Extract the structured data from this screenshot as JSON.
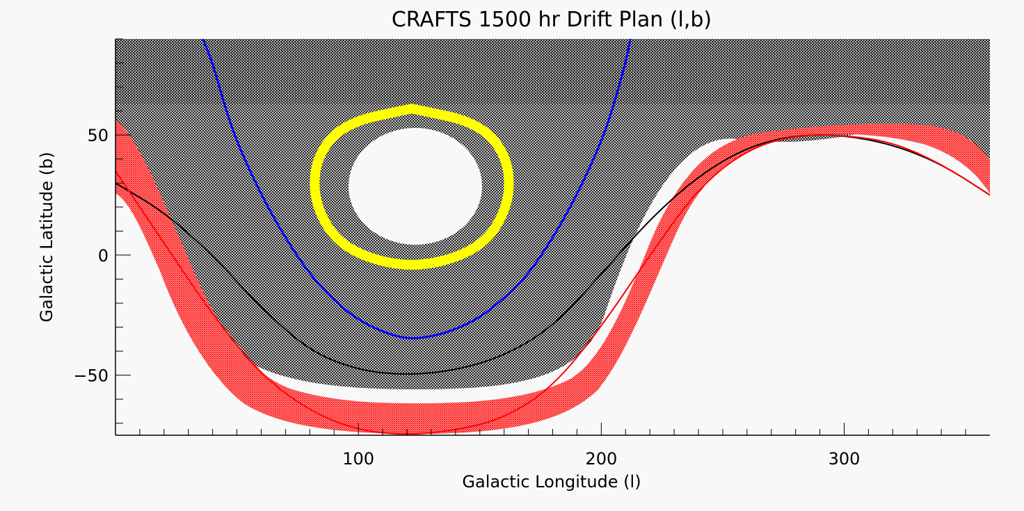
{
  "chart_data": {
    "type": "line",
    "title": "CRAFTS 1500 hr Drift Plan (l,b)",
    "xlabel": "Galactic Longitude (l)",
    "ylabel": "Galactic Latitude (b)",
    "xlim": [
      0,
      360
    ],
    "ylim": [
      -75,
      90
    ],
    "x_ticks_major": [
      100,
      200,
      300
    ],
    "x_tick_labels": [
      "100",
      "200",
      "300"
    ],
    "y_ticks_major": [
      -50,
      0,
      50
    ],
    "y_tick_labels": [
      "−50",
      "0",
      "50"
    ],
    "grid": false,
    "legend": "none",
    "series": [
      {
        "color": "#000000",
        "x": [
          0,
          20,
          40,
          60,
          80,
          100,
          120,
          140,
          160,
          180,
          200,
          220,
          240,
          260,
          280,
          300,
          320,
          340,
          360
        ],
        "y": [
          30,
          18,
          0,
          -22,
          -40,
          -48,
          -50,
          -48,
          -42,
          -30,
          -8,
          15,
          33,
          45,
          50,
          50,
          46,
          38,
          25
        ]
      },
      {
        "color": "#ff0000",
        "x": [
          0,
          20,
          40,
          60,
          80,
          100,
          120,
          140,
          160,
          180,
          200,
          220,
          240,
          260,
          280,
          300,
          320,
          340,
          360
        ],
        "y": [
          35,
          5,
          -25,
          -50,
          -65,
          -73,
          -75,
          -73,
          -68,
          -55,
          -30,
          0,
          28,
          44,
          50,
          50,
          47,
          38,
          25
        ]
      },
      {
        "color": "#0000ff",
        "x": [
          36,
          40,
          45,
          50,
          60,
          70,
          80,
          90,
          100,
          110,
          120,
          130,
          140,
          150,
          160,
          170,
          180,
          190,
          200,
          205,
          210,
          212
        ],
        "y": [
          90,
          80,
          62,
          47,
          25,
          7,
          -8,
          -19,
          -27,
          -32,
          -35,
          -34,
          -31,
          -26,
          -18,
          -8,
          7,
          25,
          47,
          62,
          80,
          90
        ]
      },
      {
        "color": "#ffff00",
        "x": [
          122,
          150,
          162,
          162,
          150,
          122,
          94,
          82,
          82,
          94,
          122
        ],
        "y": [
          61,
          55,
          40,
          20,
          2,
          -6,
          2,
          20,
          40,
          55,
          61
        ]
      }
    ]
  }
}
